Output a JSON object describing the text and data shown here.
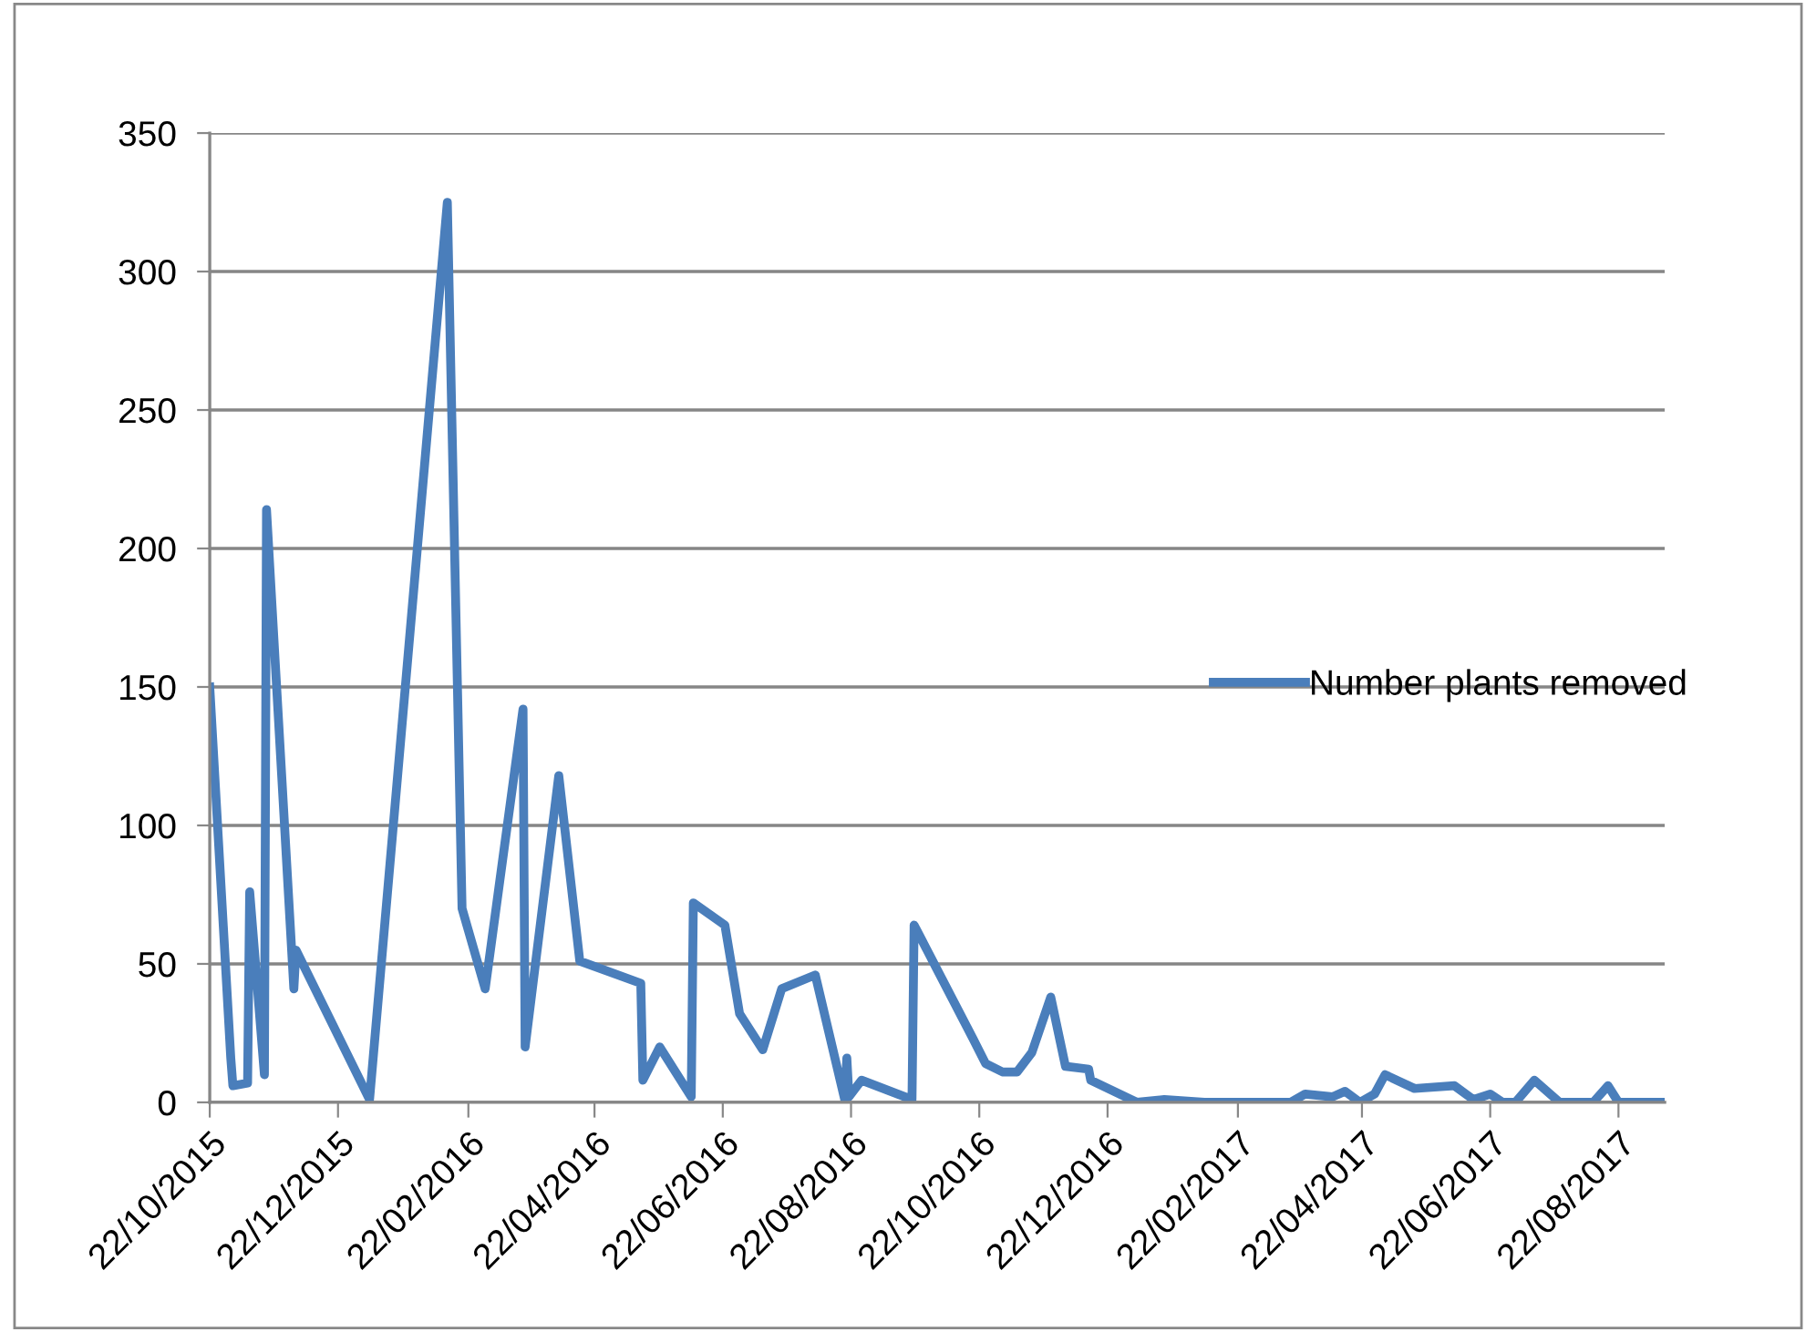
{
  "chart_data": {
    "type": "line",
    "x": [
      "2015-10-22",
      "2015-11-01",
      "2015-11-02",
      "2015-11-09",
      "2015-11-10",
      "2015-11-17",
      "2015-11-18",
      "2015-12-01",
      "2015-12-02",
      "2016-01-06",
      "2016-02-12",
      "2016-02-19",
      "2016-03-01",
      "2016-03-19",
      "2016-03-20",
      "2016-04-05",
      "2016-04-15",
      "2016-05-14",
      "2016-05-15",
      "2016-05-23",
      "2016-06-07",
      "2016-06-08",
      "2016-06-23",
      "2016-06-30",
      "2016-07-11",
      "2016-07-20",
      "2016-08-05",
      "2016-08-19",
      "2016-08-20",
      "2016-08-21",
      "2016-08-27",
      "2016-09-20",
      "2016-09-21",
      "2016-10-19",
      "2016-10-25",
      "2016-11-02",
      "2016-11-09",
      "2016-11-16",
      "2016-11-25",
      "2016-12-02",
      "2016-12-13",
      "2016-12-14",
      "2017-01-05",
      "2017-01-18",
      "2017-02-06",
      "2017-03-19",
      "2017-03-26",
      "2017-04-08",
      "2017-04-14",
      "2017-04-21",
      "2017-04-28",
      "2017-05-03",
      "2017-05-17",
      "2017-06-05",
      "2017-06-14",
      "2017-06-22",
      "2017-06-28",
      "2017-07-04",
      "2017-07-13",
      "2017-07-25",
      "2017-08-10",
      "2017-08-17",
      "2017-08-22",
      "2017-09-13"
    ],
    "series": [
      {
        "name": "Number plants removed",
        "color": "#4a7ebb",
        "values": [
          150,
          16,
          6,
          7,
          76,
          10,
          214,
          41,
          55,
          1,
          325,
          70,
          41,
          142,
          20,
          118,
          51,
          43,
          8,
          20,
          2,
          72,
          64,
          32,
          19,
          41,
          46,
          1,
          16,
          2,
          8,
          1,
          64,
          23,
          14,
          11,
          11,
          18,
          38,
          13,
          12,
          8,
          0,
          1,
          0,
          0,
          3,
          2,
          4,
          0,
          3,
          10,
          5,
          6,
          1,
          3,
          0,
          0,
          8,
          0,
          0,
          6,
          0,
          0
        ]
      }
    ],
    "xlim": [
      "2015-10-22",
      "2017-09-13"
    ],
    "xticks": [
      {
        "value": "2015-10-22",
        "label": "22/10/2015"
      },
      {
        "value": "2015-12-22",
        "label": "22/12/2015"
      },
      {
        "value": "2016-02-22",
        "label": "22/02/2016"
      },
      {
        "value": "2016-04-22",
        "label": "22/04/2016"
      },
      {
        "value": "2016-06-22",
        "label": "22/06/2016"
      },
      {
        "value": "2016-08-22",
        "label": "22/08/2016"
      },
      {
        "value": "2016-10-22",
        "label": "22/10/2016"
      },
      {
        "value": "2016-12-22",
        "label": "22/12/2016"
      },
      {
        "value": "2017-02-22",
        "label": "22/02/2017"
      },
      {
        "value": "2017-04-22",
        "label": "22/04/2017"
      },
      {
        "value": "2017-06-22",
        "label": "22/06/2017"
      },
      {
        "value": "2017-08-22",
        "label": "22/08/2017"
      }
    ],
    "ylim": [
      0,
      350
    ],
    "yticks": [
      0,
      50,
      100,
      150,
      200,
      250,
      300,
      350
    ],
    "grid": "y",
    "legend": "right",
    "marker": "none",
    "line_style": "solid"
  }
}
